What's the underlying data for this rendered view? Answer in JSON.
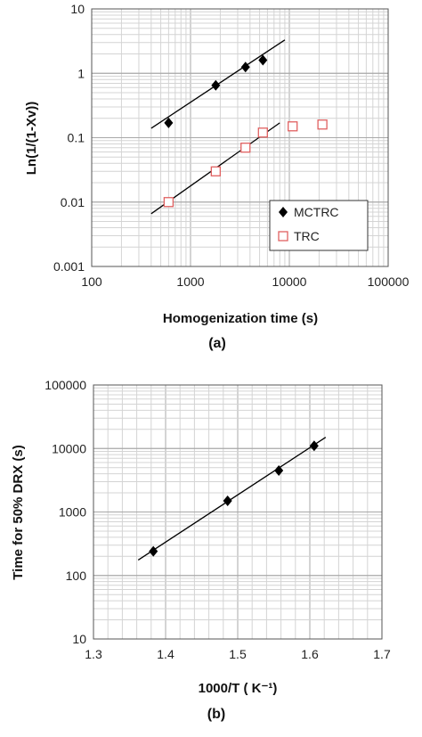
{
  "chart_data": [
    {
      "type": "scatter",
      "panel_label": "(a)",
      "xlabel": "Homogenization time (s)",
      "ylabel": "Ln(1/(1-Xv))",
      "xscale": "log",
      "yscale": "log",
      "xlim": [
        100,
        100000
      ],
      "ylim": [
        0.001,
        10
      ],
      "grid": true,
      "legend_position": "bottom-right",
      "x_tick_labels": [
        "100",
        "1000",
        "10000",
        "100000"
      ],
      "y_tick_labels": [
        "0.001",
        "0.01",
        "0.1",
        "1",
        "10"
      ],
      "series": [
        {
          "name": "MCTRC",
          "marker": "filled-diamond",
          "color": "#000000",
          "points": [
            [
              600,
              0.17
            ],
            [
              1800,
              0.65
            ],
            [
              3600,
              1.25
            ],
            [
              5400,
              1.6
            ]
          ],
          "trendline": [
            [
              400,
              0.14
            ],
            [
              9000,
              3.3
            ]
          ]
        },
        {
          "name": "TRC",
          "marker": "open-square",
          "color": "#e06060",
          "points": [
            [
              600,
              0.01
            ],
            [
              1800,
              0.03
            ],
            [
              3600,
              0.07
            ],
            [
              5400,
              0.12
            ],
            [
              10800,
              0.15
            ],
            [
              21600,
              0.16
            ]
          ],
          "trendline": [
            [
              400,
              0.0066
            ],
            [
              8000,
              0.17
            ]
          ]
        }
      ]
    },
    {
      "type": "scatter",
      "panel_label": "(b)",
      "xlabel": "1000/T ( K⁻¹)",
      "ylabel": "Time for 50% DRX (s)",
      "xscale": "linear",
      "yscale": "log",
      "xlim": [
        1.3,
        1.7
      ],
      "ylim": [
        10,
        100000
      ],
      "grid": true,
      "x_tick_labels": [
        "1.3",
        "1.4",
        "1.5",
        "1.6",
        "1.7"
      ],
      "y_tick_labels": [
        "10",
        "100",
        "1000",
        "10000",
        "100000"
      ],
      "series": [
        {
          "marker": "filled-diamond",
          "color": "#000000",
          "points": [
            [
              1.383,
              240
            ],
            [
              1.486,
              1500
            ],
            [
              1.557,
              4500
            ],
            [
              1.606,
              11000
            ]
          ],
          "trendline": [
            [
              1.362,
              175
            ],
            [
              1.622,
              15000
            ]
          ]
        }
      ]
    }
  ]
}
